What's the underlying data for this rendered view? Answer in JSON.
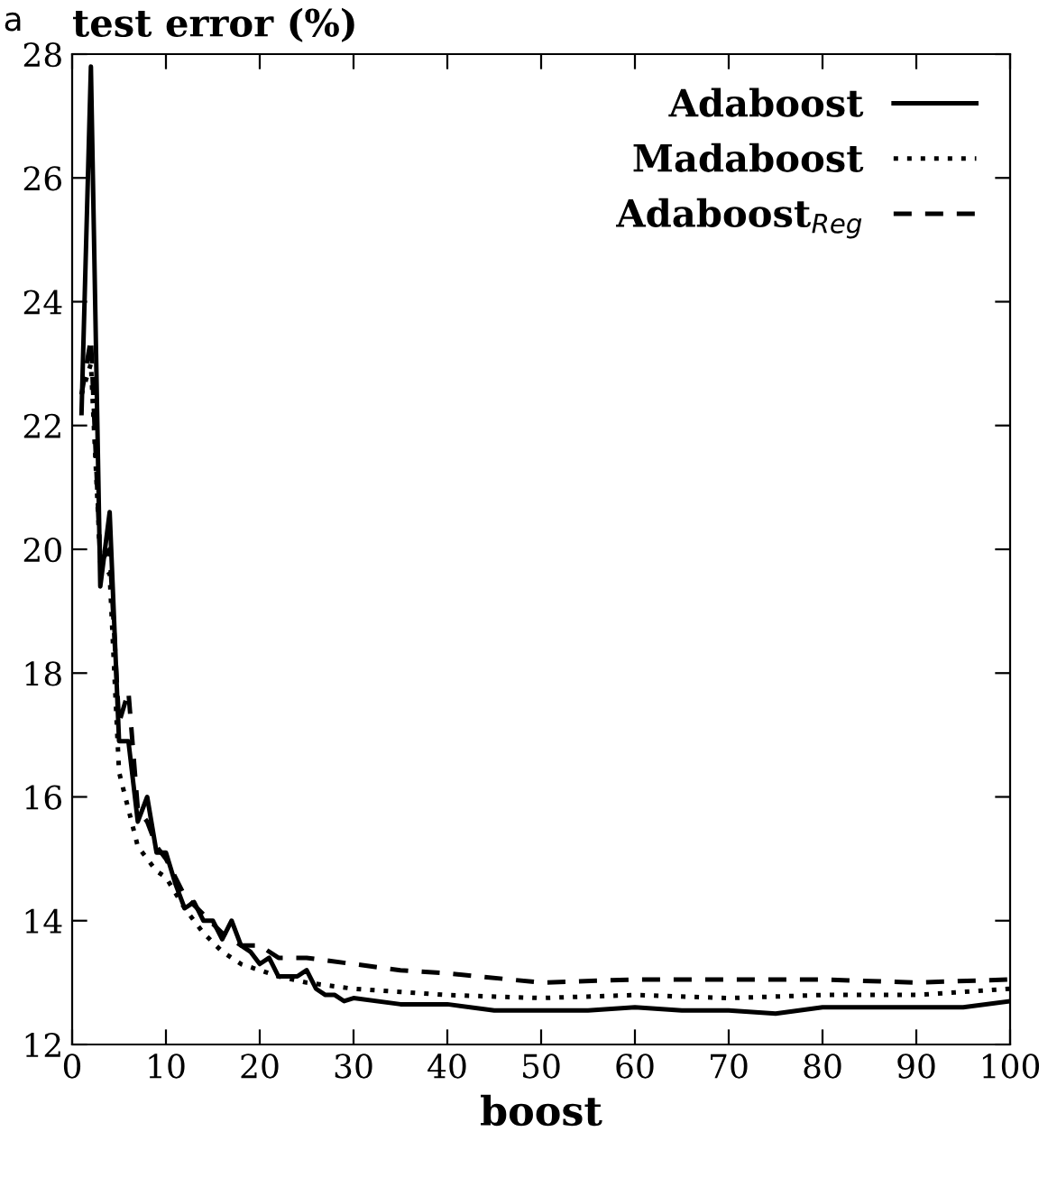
{
  "chart_data": {
    "type": "line",
    "xlabel": "boost",
    "ylabel": "test error (%)",
    "annotations": [
      "a"
    ],
    "xlim": [
      0,
      100
    ],
    "ylim": [
      12,
      28
    ],
    "xticks": [
      0,
      10,
      20,
      30,
      40,
      50,
      60,
      70,
      80,
      90,
      100
    ],
    "yticks": [
      12,
      14,
      16,
      18,
      20,
      22,
      24,
      26,
      28
    ],
    "grid": false,
    "legend": "top right",
    "marker": "none",
    "series": [
      {
        "name": "Adaboost",
        "color": "#000000",
        "line_style": "solid",
        "x": [
          1,
          2,
          3,
          4,
          5,
          6,
          7,
          8,
          9,
          10,
          11,
          12,
          13,
          14,
          15,
          16,
          17,
          18,
          19,
          20,
          21,
          22,
          23,
          24,
          25,
          26,
          27,
          28,
          29,
          30,
          35,
          40,
          45,
          50,
          55,
          60,
          65,
          70,
          75,
          80,
          85,
          90,
          95,
          100
        ],
        "values": [
          22.2,
          27.8,
          19.4,
          20.6,
          16.9,
          16.9,
          15.6,
          16.0,
          15.1,
          15.1,
          14.6,
          14.2,
          14.3,
          14.0,
          14.0,
          13.7,
          14.0,
          13.6,
          13.5,
          13.3,
          13.4,
          13.1,
          13.1,
          13.1,
          13.2,
          12.9,
          12.8,
          12.8,
          12.7,
          12.75,
          12.65,
          12.65,
          12.55,
          12.55,
          12.55,
          12.6,
          12.55,
          12.55,
          12.5,
          12.6,
          12.6,
          12.6,
          12.6,
          12.7
        ]
      },
      {
        "name": "Madaboost",
        "color": "#000000",
        "line_style": "dotted",
        "x": [
          1,
          2,
          3,
          4,
          5,
          6,
          7,
          8,
          9,
          10,
          12,
          14,
          16,
          18,
          20,
          22,
          25,
          30,
          35,
          40,
          50,
          60,
          70,
          80,
          90,
          100
        ],
        "values": [
          22.5,
          23.0,
          19.8,
          19.6,
          16.4,
          15.8,
          15.2,
          15.0,
          14.8,
          14.7,
          14.2,
          13.8,
          13.5,
          13.3,
          13.2,
          13.1,
          13.0,
          12.9,
          12.85,
          12.8,
          12.75,
          12.8,
          12.75,
          12.8,
          12.8,
          12.9
        ]
      },
      {
        "name": "Adaboost$_{Reg}$",
        "color": "#000000",
        "line_style": "dashed",
        "x": [
          1,
          2,
          3,
          4,
          5,
          6,
          7,
          8,
          9,
          10,
          12,
          14,
          16,
          18,
          20,
          22,
          25,
          30,
          35,
          40,
          50,
          60,
          70,
          80,
          90,
          100
        ],
        "values": [
          22.5,
          23.4,
          19.8,
          20.0,
          17.2,
          17.7,
          15.8,
          15.6,
          15.2,
          15.0,
          14.4,
          14.1,
          13.8,
          13.6,
          13.6,
          13.4,
          13.4,
          13.3,
          13.2,
          13.15,
          13.0,
          13.05,
          13.05,
          13.05,
          13.0,
          13.05
        ]
      }
    ]
  }
}
